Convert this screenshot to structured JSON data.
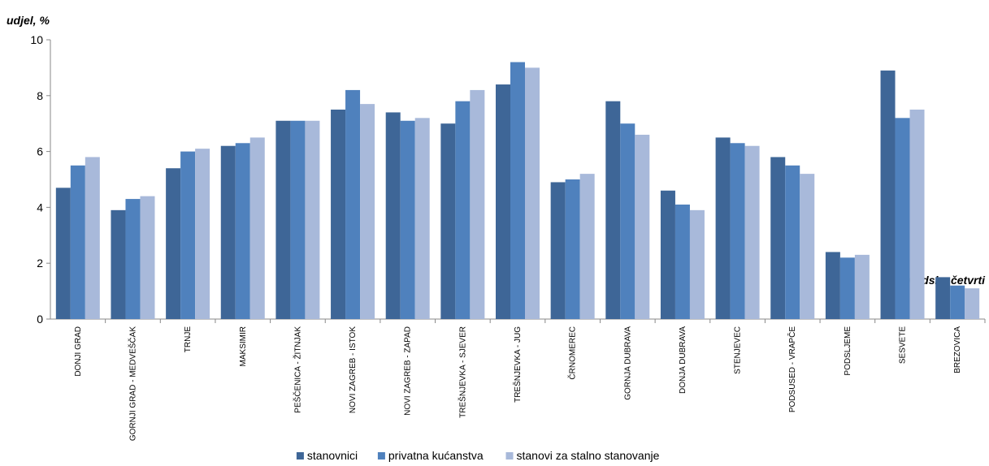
{
  "chart_data": {
    "type": "bar",
    "y_label": "udjel, %",
    "x_label": "gradske četvrti",
    "categories": [
      "DONJI GRAD",
      "GORNJI GRAD - MEDVEŠČAK",
      "TRNJE",
      "MAKSIMIR",
      "PEŠČENICA - ŽITNJAK",
      "NOVI ZAGREB - ISTOK",
      "NOVI ZAGREB - ZAPAD",
      "TREŠNJEVKA - SJEVER",
      "TREŠNJEVKA - JUG",
      "ČRNOMEREC",
      "GORNJA DUBRAVA",
      "DONJA DUBRAVA",
      "STENJEVEC",
      "PODSUSED - VRAPČE",
      "PODSLJEME",
      "SESVETE",
      "BREZOVICA"
    ],
    "series": [
      {
        "name": "stanovnici",
        "color": "#3e6697",
        "values": [
          4.7,
          3.9,
          5.4,
          6.2,
          7.1,
          7.5,
          7.4,
          7.0,
          8.4,
          4.9,
          7.8,
          4.6,
          6.5,
          5.8,
          2.4,
          8.9,
          1.5
        ]
      },
      {
        "name": "privatna kućanstva",
        "color": "#4f81bd",
        "values": [
          5.5,
          4.3,
          6.0,
          6.3,
          7.1,
          8.2,
          7.1,
          7.8,
          9.2,
          5.0,
          7.0,
          4.1,
          6.3,
          5.5,
          2.2,
          7.2,
          1.2
        ]
      },
      {
        "name": "stanovi za stalno stanovanje",
        "color": "#a8b9da",
        "values": [
          5.8,
          4.4,
          6.1,
          6.5,
          7.1,
          7.7,
          7.2,
          8.2,
          9.0,
          5.2,
          6.6,
          3.9,
          6.2,
          5.2,
          2.3,
          7.5,
          1.1
        ]
      }
    ],
    "ylim": [
      0,
      10
    ],
    "yticks": [
      0,
      2,
      4,
      6,
      8,
      10
    ],
    "grid": false,
    "legend": "bottom"
  }
}
